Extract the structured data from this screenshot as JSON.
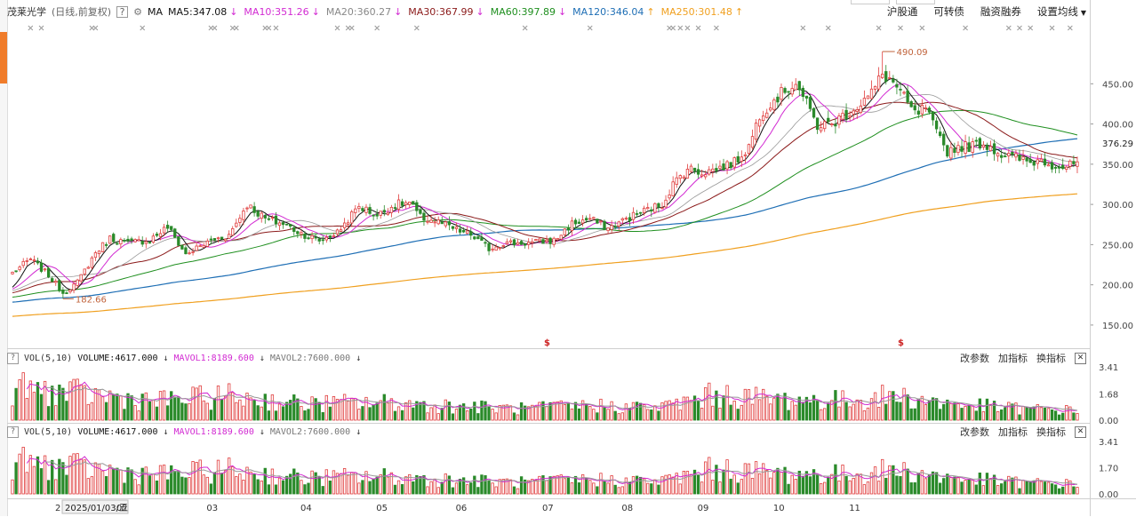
{
  "header": {
    "stock_name": "茂莱光学",
    "mode": "(日线,前复权)",
    "help_icon": "?",
    "ma_prefix": "MA",
    "ma_items": [
      {
        "label": "MA5:347.08",
        "arrow": "↓",
        "color": "#111111"
      },
      {
        "label": "MA10:351.26",
        "arrow": "↓",
        "color": "#d22ad2"
      },
      {
        "label": "MA20:360.27",
        "arrow": "↓",
        "color": "#888888"
      },
      {
        "label": "MA30:367.99",
        "arrow": "↓",
        "color": "#8b1a1a"
      },
      {
        "label": "MA60:397.89",
        "arrow": "↓",
        "color": "#1f8f1f"
      },
      {
        "label": "MA120:346.04",
        "arrow": "↑",
        "color": "#1f6fb5"
      },
      {
        "label": "MA250:301.48",
        "arrow": "↑",
        "color": "#f0a020"
      }
    ],
    "menu": [
      "沪股通",
      "可转债",
      "融资融券",
      "设置均线"
    ]
  },
  "volume_panels": [
    {
      "title": "VOL(5,10)",
      "volume": "VOLUME:4617.000",
      "mavol1": "MAVOL1:8189.600",
      "mavol2": "MAVOL2:7600.000",
      "buttons": [
        "改参数",
        "加指标",
        "换指标"
      ],
      "y_ticks": [
        "3.41",
        "1.68",
        "0.00"
      ]
    },
    {
      "title": "VOL(5,10)",
      "volume": "VOLUME:4617.000",
      "mavol1": "MAVOL1:8189.600",
      "mavol2": "MAVOL2:7600.000",
      "buttons": [
        "改参数",
        "加指标",
        "换指标"
      ],
      "y_ticks": [
        "3.41",
        "1.70",
        "0.00"
      ]
    }
  ],
  "date_axis": {
    "current_date": "2025/01/03/五",
    "first_label": "2",
    "months": [
      "02",
      "03",
      "04",
      "05",
      "06",
      "07",
      "08",
      "09",
      "10",
      "11"
    ]
  },
  "chart_data": {
    "type": "candlestick",
    "y_ticks": [
      450,
      400,
      350,
      300,
      250,
      200,
      150
    ],
    "y_tick_labels": [
      "450.00",
      "400.00",
      "350.00",
      "300.00",
      "250.00",
      "200.00",
      "150.00"
    ],
    "ylim": [
      130,
      510
    ],
    "current_price_label": "376.29",
    "high_annotation": {
      "label": "490.09",
      "value": 490.09
    },
    "low_annotation": {
      "label": "182.66",
      "value": 182.66
    },
    "colors": {
      "up": "#e03c3c",
      "down": "#2a8a2a",
      "ma5": "#111111",
      "ma10": "#d22ad2",
      "ma20": "#999999",
      "ma30": "#8b1a1a",
      "ma60": "#1f8f1f",
      "ma120": "#1f6fb5",
      "ma250": "#f0a020"
    },
    "close_anchors": [
      [
        0,
        215
      ],
      [
        5,
        232
      ],
      [
        10,
        212
      ],
      [
        14,
        190
      ],
      [
        18,
        203
      ],
      [
        23,
        240
      ],
      [
        27,
        258
      ],
      [
        32,
        252
      ],
      [
        38,
        256
      ],
      [
        43,
        272
      ],
      [
        48,
        238
      ],
      [
        55,
        255
      ],
      [
        60,
        262
      ],
      [
        65,
        300
      ],
      [
        70,
        282
      ],
      [
        75,
        276
      ],
      [
        80,
        264
      ],
      [
        85,
        255
      ],
      [
        90,
        265
      ],
      [
        96,
        298
      ],
      [
        101,
        286
      ],
      [
        106,
        300
      ],
      [
        110,
        302
      ],
      [
        113,
        284
      ],
      [
        118,
        278
      ],
      [
        123,
        268
      ],
      [
        127,
        262
      ],
      [
        132,
        245
      ],
      [
        136,
        252
      ],
      [
        143,
        252
      ],
      [
        150,
        255
      ],
      [
        155,
        276
      ],
      [
        160,
        282
      ],
      [
        165,
        270
      ],
      [
        170,
        282
      ],
      [
        175,
        292
      ],
      [
        180,
        300
      ],
      [
        183,
        325
      ],
      [
        187,
        345
      ],
      [
        191,
        340
      ],
      [
        195,
        344
      ],
      [
        200,
        352
      ],
      [
        204,
        372
      ],
      [
        207,
        412
      ],
      [
        211,
        430
      ],
      [
        214,
        442
      ],
      [
        217,
        452
      ],
      [
        220,
        425
      ],
      [
        223,
        398
      ],
      [
        227,
        400
      ],
      [
        230,
        410
      ],
      [
        234,
        422
      ],
      [
        238,
        438
      ],
      [
        241,
        462
      ],
      [
        244,
        452
      ],
      [
        247,
        432
      ],
      [
        250,
        412
      ],
      [
        253,
        420
      ],
      [
        256,
        388
      ],
      [
        259,
        366
      ],
      [
        262,
        372
      ],
      [
        265,
        372
      ],
      [
        268,
        376
      ],
      [
        271,
        372
      ],
      [
        274,
        362
      ],
      [
        278,
        358
      ],
      [
        282,
        352
      ],
      [
        285,
        356
      ],
      [
        288,
        350
      ],
      [
        292,
        346
      ],
      [
        295,
        352
      ]
    ],
    "series_count_days": 296,
    "volume_anchors": [
      [
        0,
        2.0
      ],
      [
        20,
        1.6
      ],
      [
        40,
        1.2
      ],
      [
        60,
        1.5
      ],
      [
        80,
        1.0
      ],
      [
        100,
        1.1
      ],
      [
        120,
        0.9
      ],
      [
        140,
        0.7
      ],
      [
        160,
        0.9
      ],
      [
        180,
        0.8
      ],
      [
        195,
        1.6
      ],
      [
        210,
        1.3
      ],
      [
        230,
        1.2
      ],
      [
        245,
        1.5
      ],
      [
        260,
        1.0
      ],
      [
        280,
        0.7
      ],
      [
        295,
        0.6
      ]
    ]
  }
}
